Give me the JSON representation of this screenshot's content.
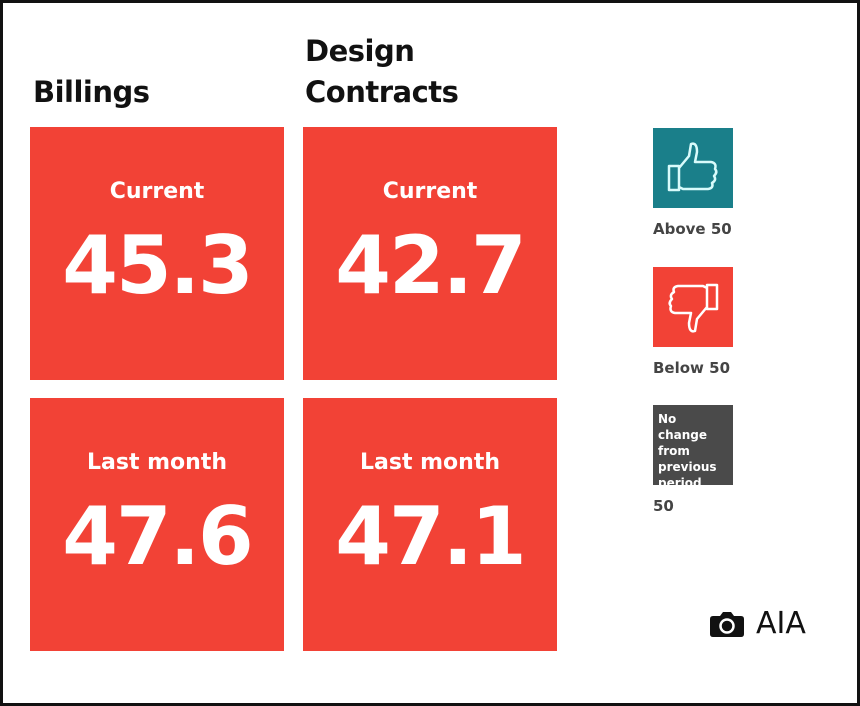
{
  "columns": [
    {
      "title": "Billings",
      "current_label": "Current",
      "current_value": "45.3",
      "last_label": "Last month",
      "last_value": "47.6"
    },
    {
      "title": "Design Contracts",
      "current_label": "Current",
      "current_value": "42.7",
      "last_label": "Last month",
      "last_value": "47.1"
    }
  ],
  "legend": [
    {
      "icon": "thumbs-up-icon",
      "label": "Above 50",
      "color": "#1a7f8a"
    },
    {
      "icon": "thumbs-down-icon",
      "label": "Below 50",
      "color": "#f24236"
    },
    {
      "box_text": "No change from previous period",
      "label": "50",
      "color": "#4a4a4a"
    }
  ],
  "credit": {
    "icon": "camera-icon",
    "text": "AIA"
  },
  "colors": {
    "below": "#f24236",
    "above": "#1a7f8a",
    "neutral": "#4a4a4a"
  }
}
